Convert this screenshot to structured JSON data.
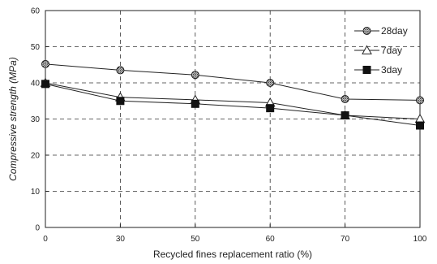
{
  "chart_data": {
    "type": "line",
    "title": "",
    "xlabel": "Recycled fines replacement ratio (%)",
    "ylabel": "Compressive strength (MPa)",
    "categories": [
      "0",
      "30",
      "50",
      "60",
      "70",
      "100"
    ],
    "ylim": [
      0,
      60
    ],
    "yticks": [
      "0",
      "10",
      "20",
      "30",
      "40",
      "50",
      "60"
    ],
    "grid": true,
    "legend_position": "top-right",
    "series": [
      {
        "name": "28day",
        "marker": "circle-hatched",
        "values": [
          45.2,
          43.5,
          42.2,
          40.0,
          35.5,
          35.2
        ]
      },
      {
        "name": "7day",
        "marker": "triangle-open",
        "values": [
          40.0,
          36.0,
          35.3,
          34.5,
          31.0,
          30.0
        ]
      },
      {
        "name": "3day",
        "marker": "square-filled",
        "values": [
          39.7,
          35.0,
          34.2,
          33.0,
          31.0,
          28.2
        ]
      }
    ]
  }
}
